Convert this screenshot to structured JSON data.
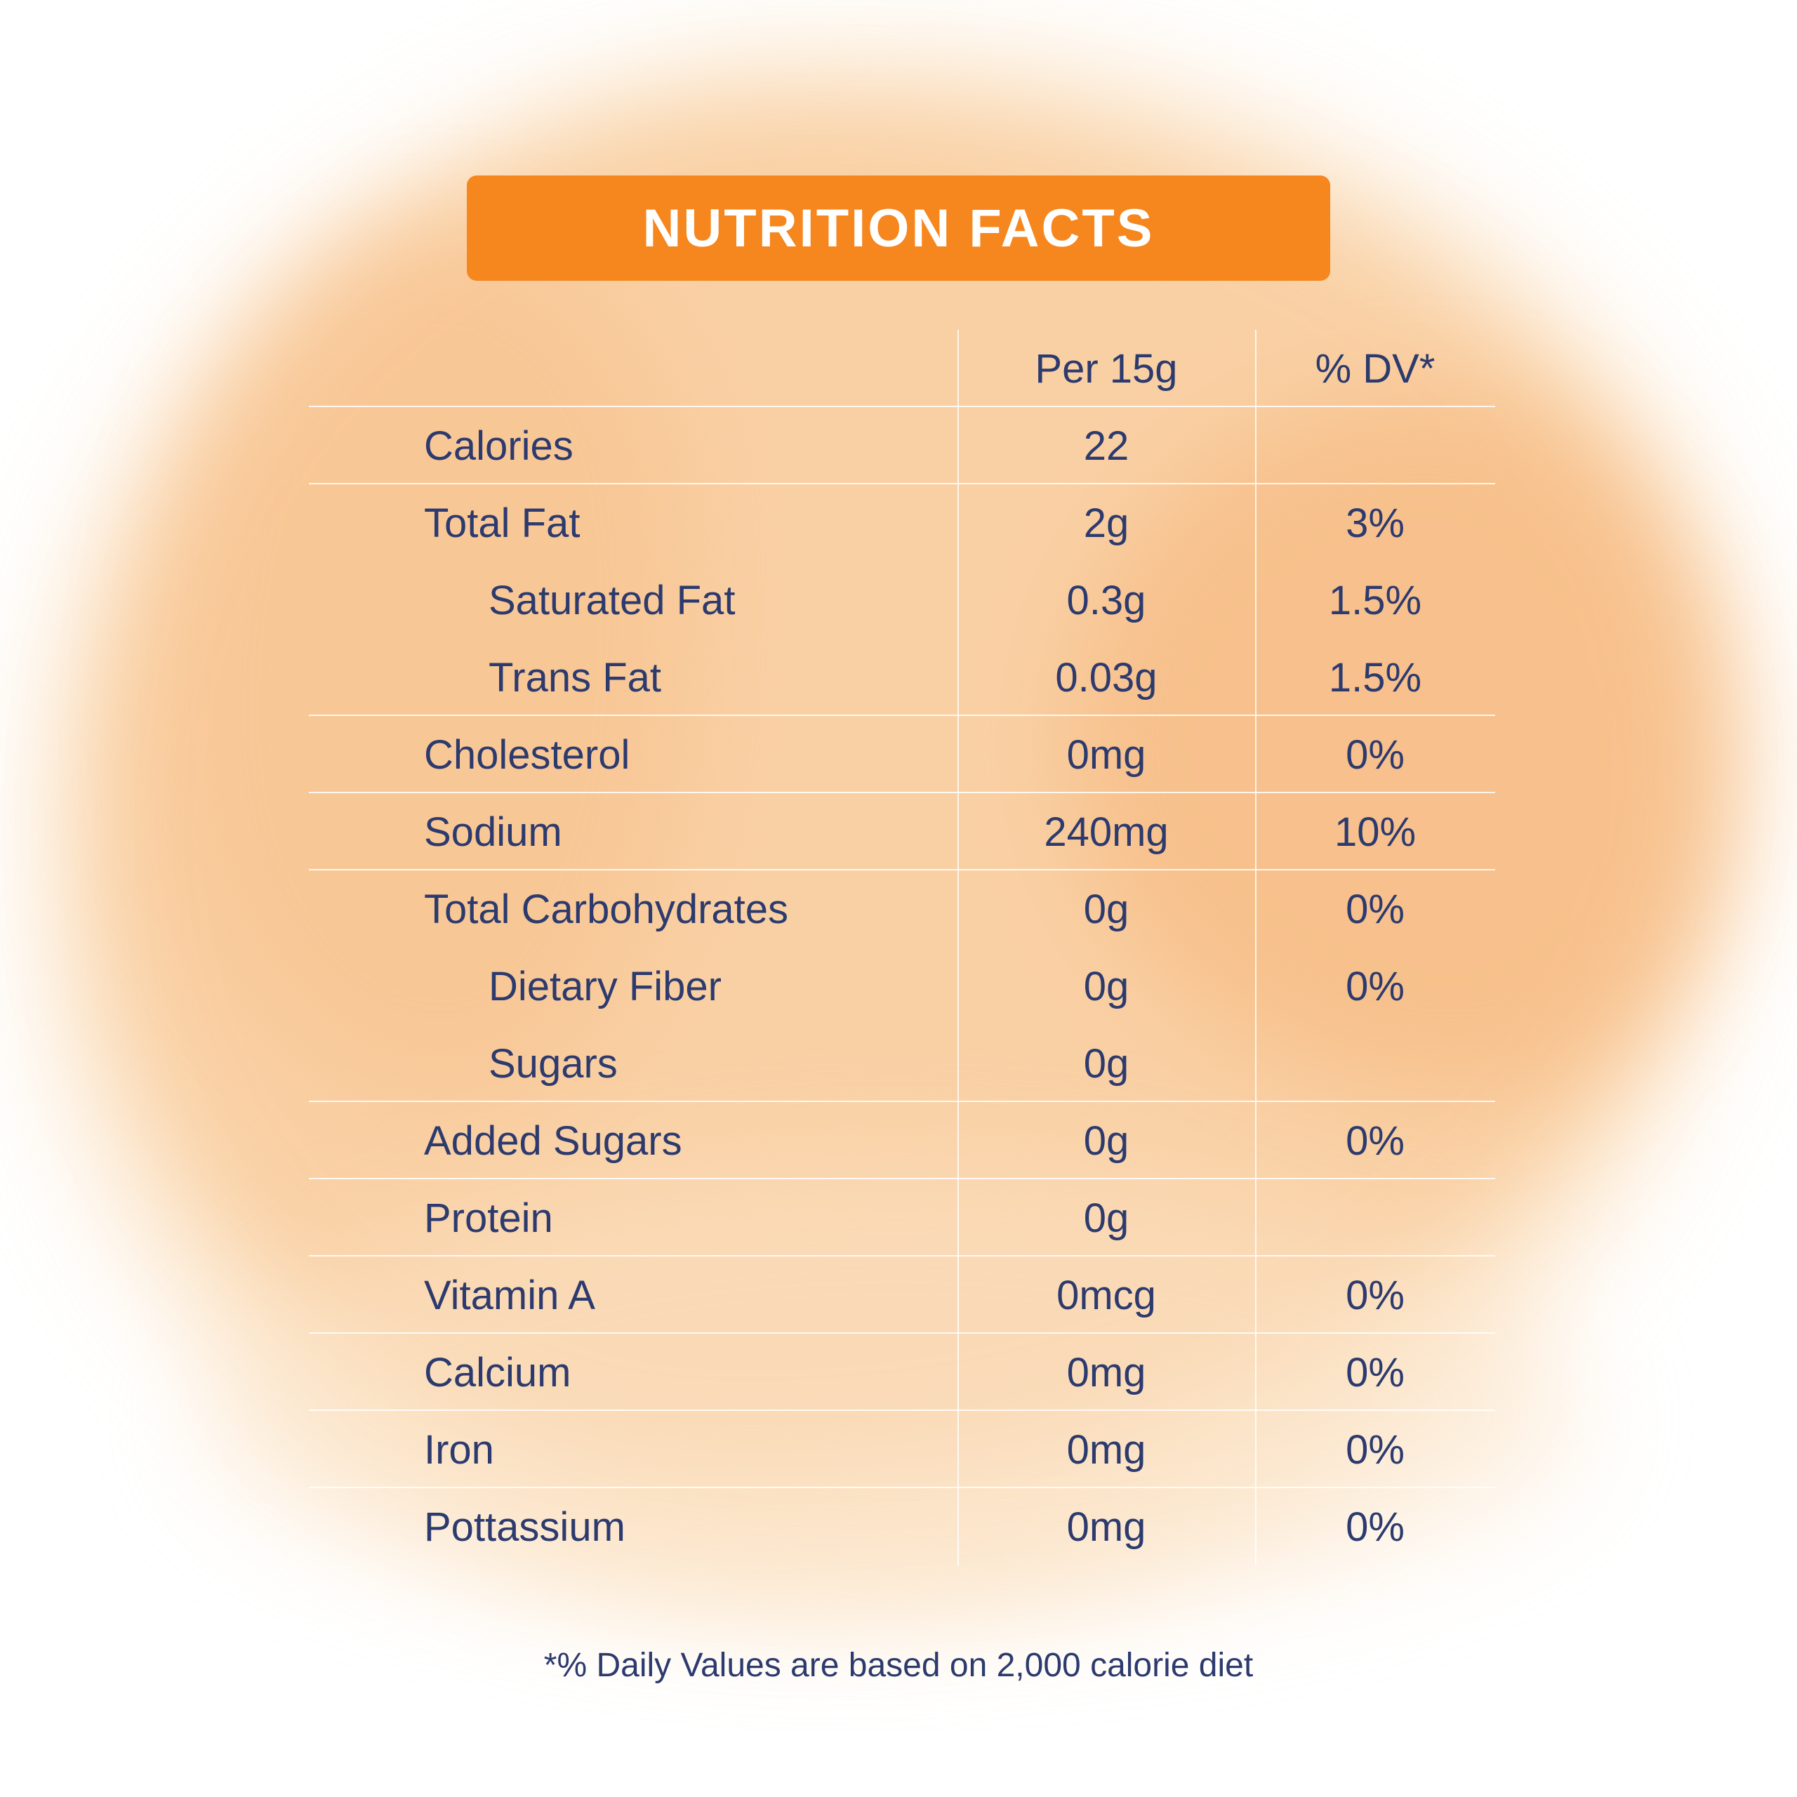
{
  "title_bar": {
    "title": "NUTRITION FACTS"
  },
  "colors": {
    "accent_orange": "#f6861e",
    "text_navy": "#2c3a6e",
    "divider_white": "#ffffff",
    "watercolor_wash": "#f8c28a"
  },
  "table": {
    "columns": {
      "amount": "Per 15g",
      "dv": "% DV*"
    },
    "rows": [
      {
        "label": "Calories",
        "value": "22",
        "dv": "",
        "indent": false,
        "divider": true
      },
      {
        "label": "Total Fat",
        "value": "2g",
        "dv": "3%",
        "indent": false,
        "divider": false
      },
      {
        "label": "Saturated Fat",
        "value": "0.3g",
        "dv": "1.5%",
        "indent": true,
        "divider": false
      },
      {
        "label": "Trans Fat",
        "value": "0.03g",
        "dv": "1.5%",
        "indent": true,
        "divider": true
      },
      {
        "label": "Cholesterol",
        "value": "0mg",
        "dv": "0%",
        "indent": false,
        "divider": true
      },
      {
        "label": "Sodium",
        "value": "240mg",
        "dv": "10%",
        "indent": false,
        "divider": true
      },
      {
        "label": "Total Carbohydrates",
        "value": "0g",
        "dv": "0%",
        "indent": false,
        "divider": false
      },
      {
        "label": "Dietary Fiber",
        "value": "0g",
        "dv": "0%",
        "indent": true,
        "divider": false
      },
      {
        "label": "Sugars",
        "value": "0g",
        "dv": "",
        "indent": true,
        "divider": true
      },
      {
        "label": "Added Sugars",
        "value": "0g",
        "dv": "0%",
        "indent": false,
        "divider": true
      },
      {
        "label": "Protein",
        "value": "0g",
        "dv": "",
        "indent": false,
        "divider": true
      },
      {
        "label": "Vitamin A",
        "value": "0mcg",
        "dv": "0%",
        "indent": false,
        "divider": true
      },
      {
        "label": "Calcium",
        "value": "0mg",
        "dv": "0%",
        "indent": false,
        "divider": true
      },
      {
        "label": "Iron",
        "value": "0mg",
        "dv": "0%",
        "indent": false,
        "divider": true
      },
      {
        "label": "Pottassium",
        "value": "0mg",
        "dv": "0%",
        "indent": false,
        "divider": false
      }
    ]
  },
  "footer": {
    "note": "*% Daily Values are based on 2,000 calorie diet"
  }
}
